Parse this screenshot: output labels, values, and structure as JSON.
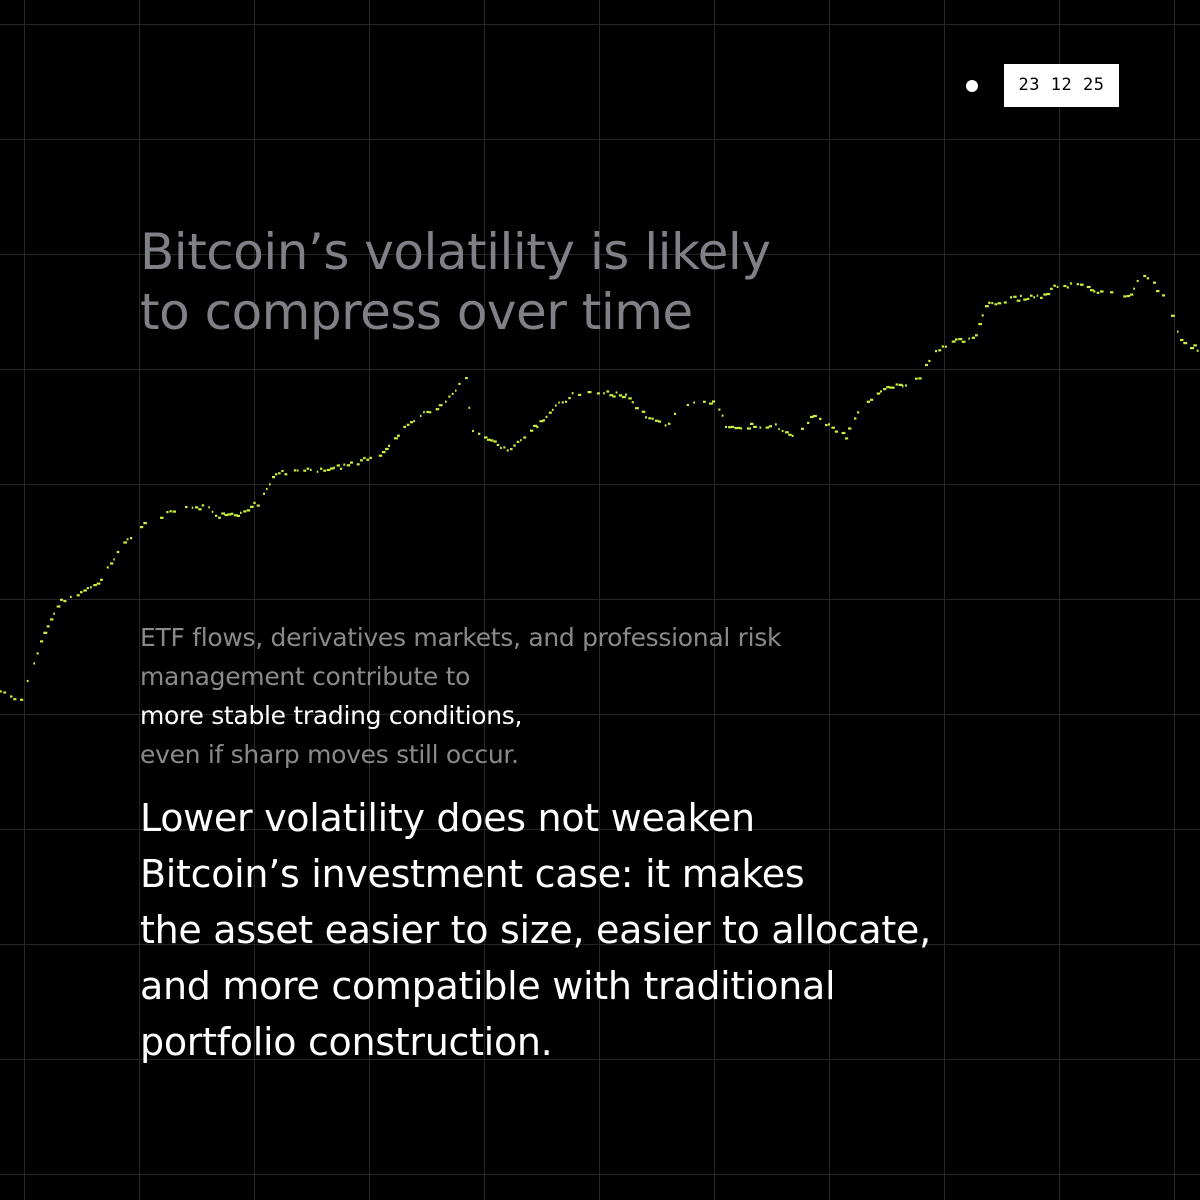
{
  "date_badge": "23 12 25",
  "title": {
    "line1": "Bitcoin’s volatility is likely",
    "line2": "to compress over time"
  },
  "context": {
    "line1": "ETF flows, derivatives markets, and professional risk",
    "line2_muted": "management contribute to ",
    "line2_highlight": "more stable trading conditions,",
    "line3": "even if sharp moves still occur."
  },
  "claim": {
    "line1": "Lower volatility does not weaken",
    "line2": "Bitcoin’s investment case: it makes",
    "line3": "the asset easier to size, easier to allocate,",
    "line4": "and more compatible with traditional",
    "line5": "portfolio construction."
  },
  "colors": {
    "background": "#000000",
    "grid": "#262626",
    "trend_line": "#c8f03c",
    "title_text": "#808087",
    "muted_text": "#8a8a8a",
    "highlight_text": "#ffffff",
    "badge_bg": "#ffffff",
    "badge_text": "#000000"
  }
}
